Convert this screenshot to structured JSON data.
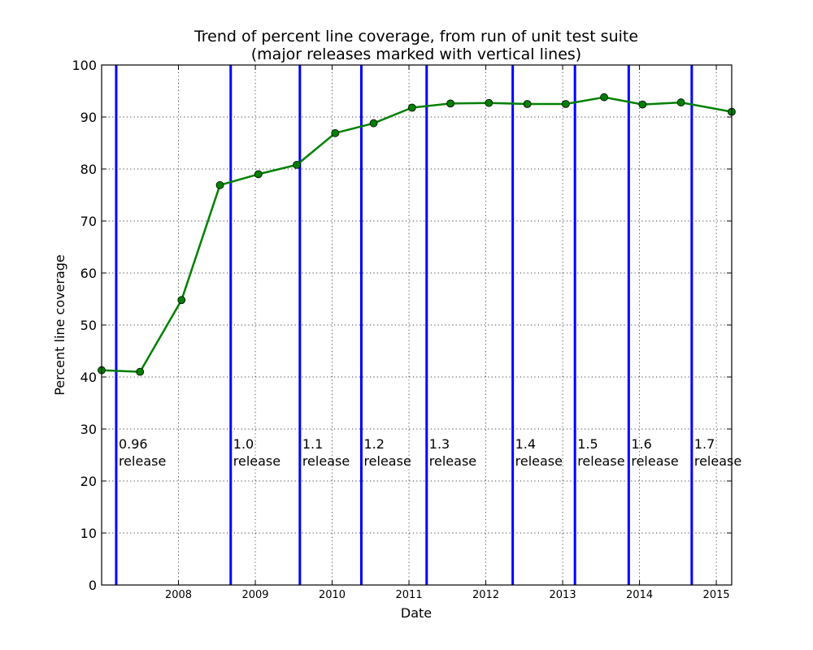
{
  "chart_data": {
    "type": "line",
    "title": "Trend of percent line coverage, from run of unit test suite",
    "subtitle": "(major releases marked with vertical lines)",
    "xlabel": "Date",
    "ylabel": "Percent line coverage",
    "xlim": [
      2007.0,
      2015.2
    ],
    "ylim": [
      0,
      100
    ],
    "x_ticks": [
      2008,
      2009,
      2010,
      2011,
      2012,
      2013,
      2014,
      2015
    ],
    "y_ticks": [
      0,
      10,
      20,
      30,
      40,
      50,
      60,
      70,
      80,
      90,
      100
    ],
    "grid": true,
    "colors": {
      "series": "#008000",
      "release_lines": "#0000ff"
    },
    "series": [
      {
        "x": [
          2007.0,
          2007.5,
          2008.04,
          2008.54,
          2009.04,
          2009.54,
          2010.04,
          2010.54,
          2011.04,
          2011.54,
          2012.04,
          2012.54,
          2013.04,
          2013.54,
          2014.04,
          2014.54,
          2015.2
        ],
        "values": [
          41.3,
          41.0,
          54.8,
          76.9,
          79.0,
          80.8,
          86.9,
          88.8,
          91.8,
          92.6,
          92.7,
          92.5,
          92.5,
          93.8,
          92.4,
          92.8,
          91.0
        ]
      }
    ],
    "releases": [
      {
        "x": 2007.19,
        "version": "0.96",
        "word": "release"
      },
      {
        "x": 2008.68,
        "version": "1.0",
        "word": "release"
      },
      {
        "x": 2009.58,
        "version": "1.1",
        "word": "release"
      },
      {
        "x": 2010.38,
        "version": "1.2",
        "word": "release"
      },
      {
        "x": 2011.23,
        "version": "1.3",
        "word": "release"
      },
      {
        "x": 2012.35,
        "version": "1.4",
        "word": "release"
      },
      {
        "x": 2013.16,
        "version": "1.5",
        "word": "release"
      },
      {
        "x": 2013.86,
        "version": "1.6",
        "word": "release"
      },
      {
        "x": 2014.68,
        "version": "1.7",
        "word": "release"
      }
    ],
    "release_label_y": 27
  }
}
